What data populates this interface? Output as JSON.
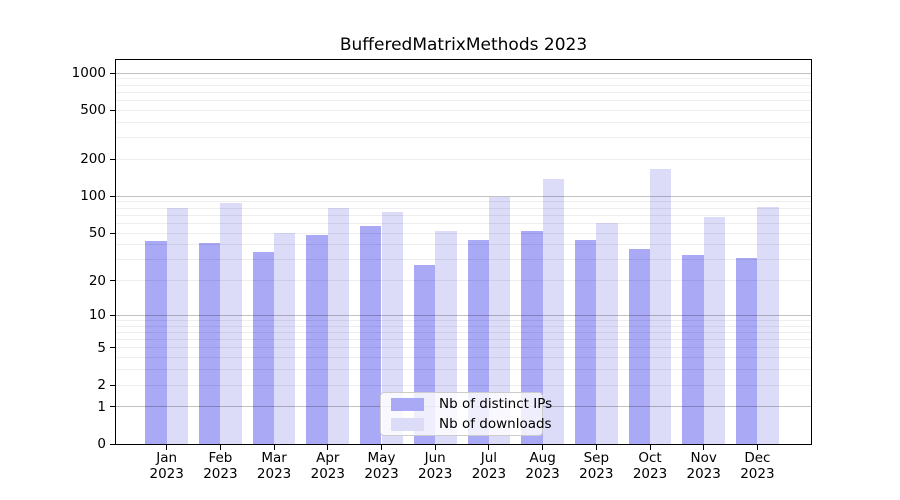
{
  "chart_data": {
    "type": "bar",
    "title": "BufferedMatrixMethods 2023",
    "y_scale": "log(1+x)",
    "grid": true,
    "legend_position": "bottom-center",
    "categories": [
      "Jan",
      "Feb",
      "Mar",
      "Apr",
      "May",
      "Jun",
      "Jul",
      "Aug",
      "Sep",
      "Oct",
      "Nov",
      "Dec"
    ],
    "category_year": "2023",
    "series": [
      {
        "name": "Nb of distinct IPs",
        "color": "#a9a9f6",
        "values": [
          43,
          41,
          35,
          48,
          57,
          27,
          44,
          52,
          44,
          37,
          33,
          31
        ]
      },
      {
        "name": "Nb of downloads",
        "color": "#dcdcf9",
        "values": [
          80,
          88,
          50,
          81,
          74,
          52,
          98,
          139,
          60,
          167,
          68,
          82
        ]
      }
    ],
    "y_ticks": [
      0,
      1,
      2,
      5,
      10,
      20,
      50,
      100,
      200,
      500,
      1000
    ],
    "ylim": [
      0,
      1280
    ],
    "xlabel": "",
    "ylabel": ""
  },
  "colors": {
    "axis": "#000000",
    "major_grid": "#b3b3b3",
    "minor_grid": "#ececec",
    "background": "#ffffff"
  }
}
